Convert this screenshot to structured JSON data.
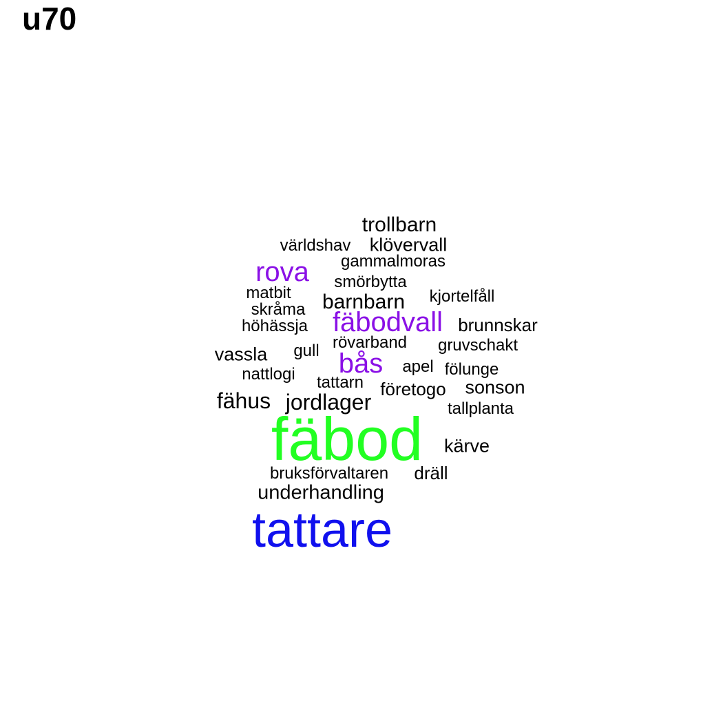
{
  "title": "u70",
  "colors": {
    "black": "#000000",
    "purple": "#8a10e6",
    "green": "#22ff22",
    "blue": "#1010ee"
  },
  "words": [
    {
      "text": "trollbarn",
      "color": "#000000"
    },
    {
      "text": "världshav",
      "color": "#000000"
    },
    {
      "text": "klövervall",
      "color": "#000000"
    },
    {
      "text": "gammalmoras",
      "color": "#000000"
    },
    {
      "text": "rova",
      "color": "#8a10e6"
    },
    {
      "text": "smörbytta",
      "color": "#000000"
    },
    {
      "text": "matbit",
      "color": "#000000"
    },
    {
      "text": "kjortelfåll",
      "color": "#000000"
    },
    {
      "text": "barnbarn",
      "color": "#000000"
    },
    {
      "text": "skråma",
      "color": "#000000"
    },
    {
      "text": "fäbodvall",
      "color": "#8a10e6"
    },
    {
      "text": "höhässja",
      "color": "#000000"
    },
    {
      "text": "brunnskar",
      "color": "#000000"
    },
    {
      "text": "rövarband",
      "color": "#000000"
    },
    {
      "text": "gruvschakt",
      "color": "#000000"
    },
    {
      "text": "gull",
      "color": "#000000"
    },
    {
      "text": "vassla",
      "color": "#000000"
    },
    {
      "text": "bås",
      "color": "#8a10e6"
    },
    {
      "text": "apel",
      "color": "#000000"
    },
    {
      "text": "fölunge",
      "color": "#000000"
    },
    {
      "text": "nattlogi",
      "color": "#000000"
    },
    {
      "text": "tattarn",
      "color": "#000000"
    },
    {
      "text": "företogo",
      "color": "#000000"
    },
    {
      "text": "sonson",
      "color": "#000000"
    },
    {
      "text": "fähus",
      "color": "#000000"
    },
    {
      "text": "jordlager",
      "color": "#000000"
    },
    {
      "text": "tallplanta",
      "color": "#000000"
    },
    {
      "text": "fäbod",
      "color": "#22ff22"
    },
    {
      "text": "kärve",
      "color": "#000000"
    },
    {
      "text": "bruksförvaltaren",
      "color": "#000000"
    },
    {
      "text": "dräll",
      "color": "#000000"
    },
    {
      "text": "underhandling",
      "color": "#000000"
    },
    {
      "text": "tattare",
      "color": "#1010ee"
    }
  ]
}
